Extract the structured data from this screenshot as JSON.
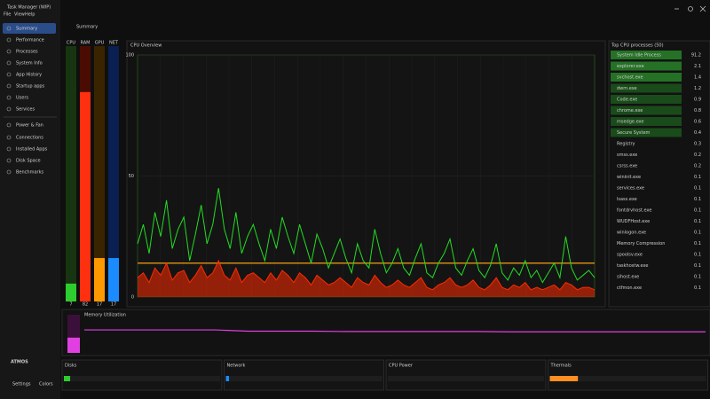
{
  "window": {
    "title": "Task Manager (WIP)",
    "menu": [
      "File",
      "View",
      "Help"
    ]
  },
  "sidebar": {
    "items": [
      "Summary",
      "Performance",
      "Processes",
      "System Info",
      "App History",
      "Startup apps",
      "Users",
      "Services",
      "Power & Fan",
      "Connections",
      "Installed Apps",
      "Disk Space",
      "Benchmarks"
    ],
    "footer": [
      "Settings",
      "Colors"
    ],
    "logo": "ATMOS"
  },
  "header": {
    "title": "Summary"
  },
  "gauges": {
    "labels": [
      "CPU",
      "RAM",
      "GPU",
      "NET"
    ],
    "values": [
      7,
      82,
      17,
      17
    ],
    "colors": [
      "#2ecc2e",
      "#ff3010",
      "#ff9900",
      "#1a8cff"
    ],
    "tracks": [
      "#173510",
      "#4a0c02",
      "#3a2400",
      "#0a1f52"
    ]
  },
  "cpu_overview": {
    "title": "CPU Overview",
    "ylim": [
      0,
      100
    ],
    "yticks": [
      0,
      50,
      100
    ],
    "grid": true,
    "series": [
      {
        "color": "#d08a10",
        "values": [
          14,
          14
        ]
      },
      {
        "color": "#ff2a00",
        "values": [
          8,
          10,
          6,
          12,
          9,
          14,
          7,
          10,
          11,
          6,
          9,
          13,
          8,
          10,
          15,
          9,
          7,
          12,
          6,
          9,
          10,
          8,
          6,
          10,
          7,
          11,
          9,
          6,
          10,
          8,
          5,
          9,
          7,
          5,
          6,
          8,
          6,
          4,
          8,
          6,
          5,
          9,
          6,
          4,
          5,
          7,
          5,
          4,
          6,
          8,
          4,
          3,
          5,
          6,
          8,
          5,
          4,
          5,
          7,
          4,
          3,
          5,
          8,
          4,
          3,
          5,
          4,
          6,
          3,
          4,
          3,
          4,
          5,
          3,
          6,
          5,
          3,
          4,
          4,
          3
        ]
      },
      {
        "color": "#22dd22",
        "values": [
          22,
          30,
          18,
          35,
          25,
          40,
          20,
          28,
          33,
          15,
          26,
          38,
          22,
          30,
          45,
          28,
          20,
          35,
          18,
          25,
          30,
          22,
          15,
          28,
          20,
          33,
          25,
          18,
          30,
          22,
          14,
          26,
          20,
          12,
          18,
          24,
          16,
          10,
          22,
          15,
          12,
          28,
          18,
          10,
          14,
          20,
          12,
          9,
          16,
          22,
          10,
          8,
          14,
          18,
          24,
          12,
          9,
          15,
          20,
          11,
          8,
          13,
          22,
          10,
          7,
          12,
          9,
          15,
          8,
          11,
          6,
          10,
          14,
          8,
          25,
          12,
          7,
          9,
          11,
          8
        ]
      }
    ]
  },
  "processes": {
    "title": "Top CPU processes (50)",
    "rows": [
      [
        "System Idle Process",
        91.2
      ],
      [
        "explorer.exe",
        2.1
      ],
      [
        "svchost.exe",
        1.4
      ],
      [
        "dwm.exe",
        1.2
      ],
      [
        "Code.exe",
        0.9
      ],
      [
        "chrome.exe",
        0.8
      ],
      [
        "msedge.exe",
        0.6
      ],
      [
        "Secure System",
        0.4
      ],
      [
        "Registry",
        0.3
      ],
      [
        "smss.exe",
        0.2
      ],
      [
        "csrss.exe",
        0.2
      ],
      [
        "wininit.exe",
        0.1
      ],
      [
        "services.exe",
        0.1
      ],
      [
        "lsass.exe",
        0.1
      ],
      [
        "fontdrvhost.exe",
        0.1
      ],
      [
        "WUDFHost.exe",
        0.1
      ],
      [
        "winlogon.exe",
        0.1
      ],
      [
        "Memory Compression",
        0.1
      ],
      [
        "spoolsv.exe",
        0.1
      ],
      [
        "taskhostw.exe",
        0.1
      ],
      [
        "sihost.exe",
        0.1
      ],
      [
        "ctfmon.exe",
        0.1
      ]
    ]
  },
  "memory": {
    "title": "Memory Utilization",
    "value": 40,
    "color": "#e040e0",
    "ylim": [
      0,
      100
    ],
    "values": [
      72,
      72,
      72,
      72,
      72,
      68,
      68,
      68,
      67,
      67,
      67,
      67,
      67,
      66,
      66,
      66,
      66,
      66,
      66,
      66
    ]
  },
  "panels": [
    {
      "title": "Disks",
      "value": 4,
      "color": "#2ecc2e"
    },
    {
      "title": "Network",
      "value": 2,
      "color": "#1a8cff"
    },
    {
      "title": "CPU Power",
      "value": 0,
      "color": "#c8a020"
    },
    {
      "title": "Thermals",
      "value": 18,
      "color": "#ff9020"
    }
  ]
}
